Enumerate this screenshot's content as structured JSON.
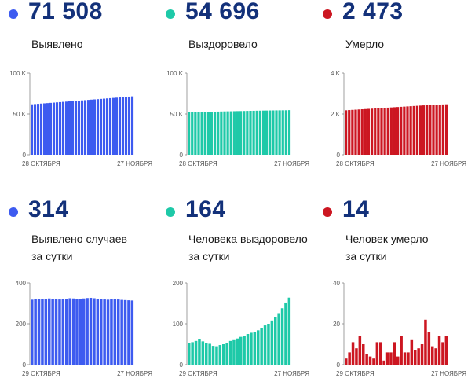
{
  "colors": {
    "blue": "#3d5bf0",
    "green": "#1ec9a8",
    "red": "#cc1621",
    "title": "#13317a"
  },
  "panels": [
    {
      "id": "detected",
      "count": "71 508",
      "label": [
        "Выявлено"
      ],
      "color": "#3d5bf0",
      "dot": "blue-dot-icon"
    },
    {
      "id": "recovered",
      "count": "54 696",
      "label": [
        "Выздоровело"
      ],
      "color": "#1ec9a8",
      "dot": "green-dot-icon"
    },
    {
      "id": "died",
      "count": "2 473",
      "label": [
        "Умерло"
      ],
      "color": "#cc1621",
      "dot": "red-dot-icon"
    },
    {
      "id": "daily-detected",
      "count": "314",
      "label": [
        "Выявлено случаев",
        "за сутки"
      ],
      "color": "#3d5bf0",
      "dot": "blue-dot-icon"
    },
    {
      "id": "daily-recovered",
      "count": "164",
      "label": [
        "Человека выздоровело",
        "за сутки"
      ],
      "color": "#1ec9a8",
      "dot": "green-dot-icon"
    },
    {
      "id": "daily-died",
      "count": "14",
      "label": [
        "Человек умерло",
        "за сутки"
      ],
      "color": "#cc1621",
      "dot": "red-dot-icon"
    }
  ],
  "chart_data": [
    {
      "type": "bar",
      "title": "Выявлено",
      "series_name": "",
      "ylim": [
        0,
        100000
      ],
      "yticks": [
        0,
        50000,
        100000
      ],
      "ytick_labels": [
        "0",
        "50 K",
        "100 K"
      ],
      "x_start_label": "28 ОКТЯБРЯ",
      "x_end_label": "27 НОЯБРЯ",
      "values": [
        61800,
        62100,
        62400,
        62700,
        63000,
        63300,
        63600,
        63900,
        64200,
        64500,
        64800,
        65100,
        65400,
        65700,
        66000,
        66300,
        66600,
        66900,
        67200,
        67500,
        67800,
        68100,
        68400,
        68700,
        69000,
        69300,
        69600,
        69900,
        70200,
        70500,
        70800,
        71194,
        71508
      ],
      "grid": false
    },
    {
      "type": "bar",
      "title": "Выздоровело",
      "ylim": [
        0,
        100000
      ],
      "yticks": [
        0,
        50000,
        100000
      ],
      "ytick_labels": [
        "0",
        "50 K",
        "100 K"
      ],
      "x_start_label": "28 ОКТЯБРЯ",
      "x_end_label": "27 НОЯБРЯ",
      "values": [
        52100,
        52200,
        52300,
        52400,
        52500,
        52600,
        52700,
        52750,
        52850,
        52950,
        53050,
        53150,
        53250,
        53300,
        53400,
        53500,
        53550,
        53650,
        53750,
        53850,
        53900,
        54000,
        54050,
        54150,
        54200,
        54300,
        54350,
        54400,
        54450,
        54500,
        54532,
        54696
      ],
      "grid": false
    },
    {
      "type": "bar",
      "title": "Умерло",
      "ylim": [
        0,
        4000
      ],
      "yticks": [
        0,
        2000,
        4000
      ],
      "ytick_labels": [
        "0",
        "2 K",
        "4 K"
      ],
      "x_start_label": "28 ОКТЯБРЯ",
      "x_end_label": "27 НОЯБРЯ",
      "values": [
        2180,
        2190,
        2200,
        2210,
        2220,
        2230,
        2240,
        2250,
        2260,
        2270,
        2280,
        2290,
        2300,
        2310,
        2320,
        2330,
        2340,
        2350,
        2360,
        2370,
        2380,
        2390,
        2400,
        2410,
        2420,
        2430,
        2440,
        2450,
        2455,
        2459,
        2466,
        2473
      ],
      "grid": false
    },
    {
      "type": "bar",
      "title": "Выявлено случаев за сутки",
      "ylim": [
        0,
        400
      ],
      "yticks": [
        0,
        200,
        400
      ],
      "ytick_labels": [
        "0",
        "200",
        "400"
      ],
      "x_start_label": "29 ОКТЯБРЯ",
      "x_end_label": "27 НОЯБРЯ",
      "values": [
        318,
        320,
        322,
        321,
        323,
        324,
        322,
        320,
        319,
        321,
        323,
        325,
        324,
        322,
        321,
        324,
        326,
        327,
        325,
        322,
        321,
        319,
        318,
        320,
        321,
        319,
        317,
        316,
        315,
        314
      ],
      "grid": false
    },
    {
      "type": "bar",
      "title": "Человека выздоровело за сутки",
      "ylim": [
        0,
        200
      ],
      "yticks": [
        0,
        100,
        200
      ],
      "ytick_labels": [
        "0",
        "100",
        "200"
      ],
      "x_start_label": "29 ОКТЯБРЯ",
      "x_end_label": "27 НОЯБРЯ",
      "values": [
        52,
        55,
        58,
        62,
        57,
        53,
        51,
        46,
        45,
        48,
        50,
        52,
        58,
        60,
        64,
        68,
        71,
        75,
        78,
        80,
        84,
        90,
        96,
        100,
        108,
        116,
        126,
        138,
        152,
        164
      ],
      "grid": false
    },
    {
      "type": "bar",
      "title": "Человек умерло за сутки",
      "ylim": [
        0,
        40
      ],
      "yticks": [
        0,
        20,
        40
      ],
      "ytick_labels": [
        "0",
        "20",
        "40"
      ],
      "x_start_label": "29 ОКТЯБРЯ",
      "x_end_label": "27 НОЯБРЯ",
      "values": [
        3,
        6,
        11,
        8,
        14,
        10,
        5,
        4,
        3,
        11,
        11,
        2,
        6,
        6,
        11,
        4,
        14,
        6,
        6,
        12,
        7,
        8,
        10,
        22,
        16,
        9,
        8,
        14,
        11,
        14
      ],
      "grid": false
    }
  ]
}
